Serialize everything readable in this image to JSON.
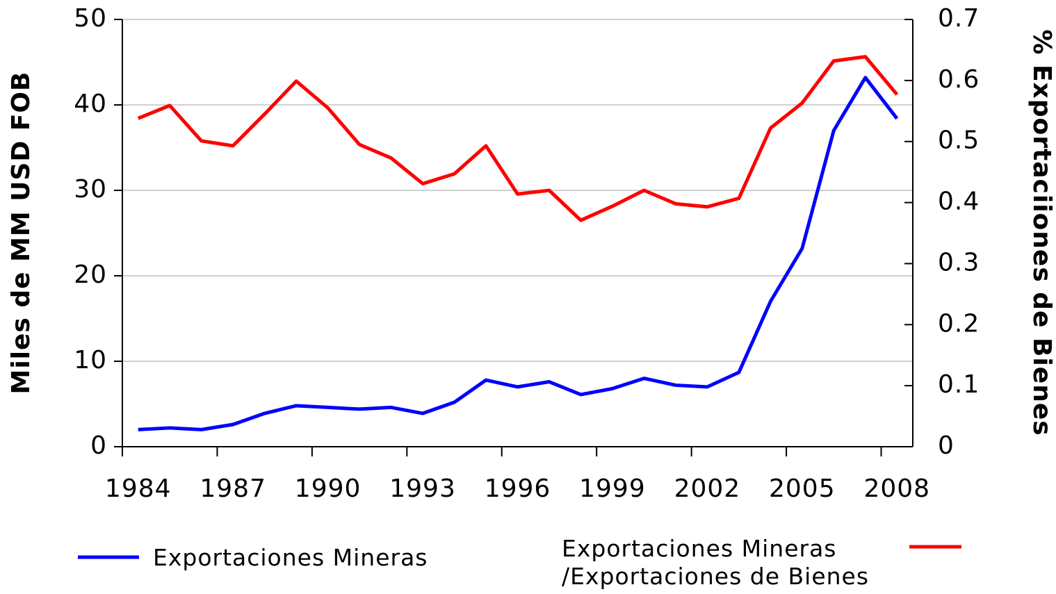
{
  "chart_data": {
    "type": "line",
    "y_label": "Miles de MM USD FOB",
    "y2_label": "% Exportaciiones de Bienes",
    "categories": [
      "1984",
      null,
      null,
      "1987",
      null,
      null,
      "1990",
      null,
      null,
      "1993",
      null,
      null,
      "1996",
      null,
      null,
      "1999",
      null,
      null,
      "2002",
      null,
      null,
      "2005",
      null,
      null,
      "2008"
    ],
    "ylim": [
      0,
      50
    ],
    "yticks": [
      0,
      10,
      20,
      30,
      40,
      50
    ],
    "y2lim": [
      0,
      0.7
    ],
    "y2ticks": [
      0,
      0.1,
      0.2,
      0.3,
      0.4,
      0.5,
      0.6,
      0.7
    ],
    "grid": true,
    "series": [
      {
        "name": "Exportaciones Mineras",
        "color": "#0000ff",
        "values": [
          2.0,
          2.2,
          2.0,
          2.6,
          3.9,
          4.8,
          4.6,
          4.4,
          4.6,
          3.9,
          5.2,
          7.8,
          7.0,
          7.6,
          6.1,
          6.8,
          8.0,
          7.2,
          7.0,
          8.7,
          17.0,
          23.2,
          37.0,
          43.2,
          38.4
        ]
      },
      {
        "name": "Exportaciones Mineras\n/Exportaciones de Bienes",
        "color": "#ff0000",
        "axis": "y2",
        "values": [
          0.538,
          0.559,
          0.501,
          0.493,
          0.545,
          0.599,
          0.555,
          0.495,
          0.473,
          0.431,
          0.447,
          0.493,
          0.414,
          0.42,
          0.371,
          0.394,
          0.42,
          0.398,
          0.393,
          0.407,
          0.522,
          0.563,
          0.632,
          0.639,
          0.577
        ]
      }
    ]
  }
}
